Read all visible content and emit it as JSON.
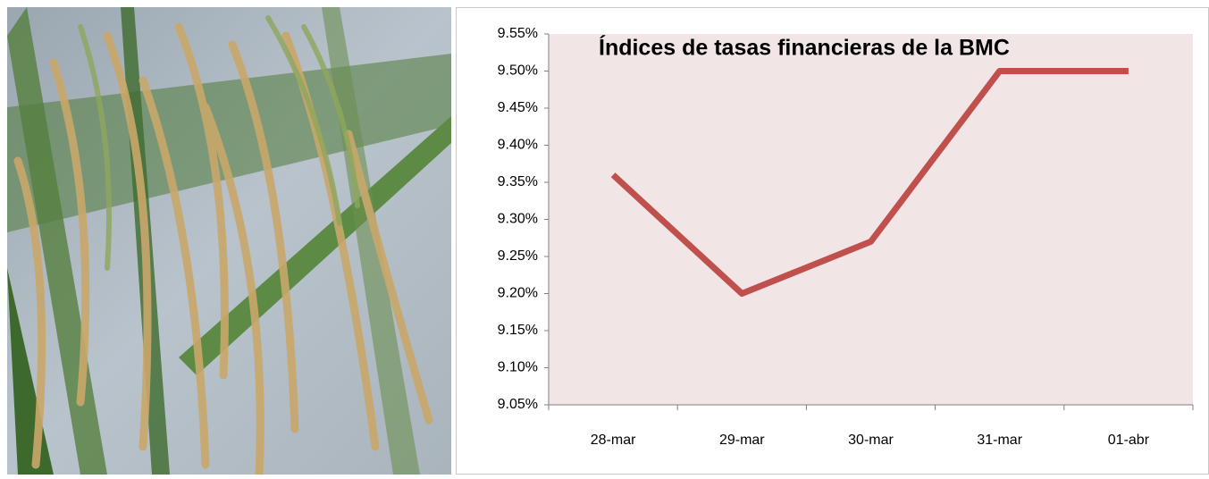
{
  "chart_data": {
    "type": "line",
    "title": "Índices de tasas financieras de la BMC",
    "categories": [
      "28-mar",
      "29-mar",
      "30-mar",
      "31-mar",
      "01-abr"
    ],
    "values": [
      9.36,
      9.2,
      9.27,
      9.5,
      9.5
    ],
    "color": "#c0504d",
    "ylim": [
      9.05,
      9.55
    ],
    "yticks": [
      {
        "value": 9.05,
        "label": "9.05%"
      },
      {
        "value": 9.1,
        "label": "9.10%"
      },
      {
        "value": 9.15,
        "label": "9.15%"
      },
      {
        "value": 9.2,
        "label": "9.20%"
      },
      {
        "value": 9.25,
        "label": "9.25%"
      },
      {
        "value": 9.3,
        "label": "9.30%"
      },
      {
        "value": 9.35,
        "label": "9.35%"
      },
      {
        "value": 9.4,
        "label": "9.40%"
      },
      {
        "value": 9.45,
        "label": "9.45%"
      },
      {
        "value": 9.5,
        "label": "9.50%"
      },
      {
        "value": 9.55,
        "label": "9.55%"
      }
    ],
    "grid": false
  }
}
